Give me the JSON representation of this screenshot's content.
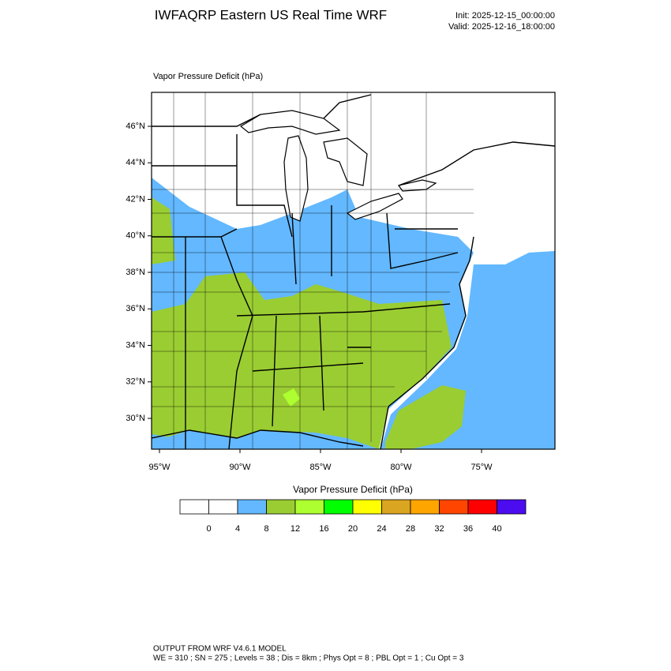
{
  "header": {
    "title": "IWFAQRP Eastern US Real Time WRF",
    "init": "Init: 2025-12-15_00:00:00",
    "valid": "Valid: 2025-12-16_18:00:00"
  },
  "map": {
    "subtitle": "Vapor Pressure Deficit   (hPa)",
    "lat_labels": [
      "46°N",
      "44°N",
      "42°N",
      "40°N",
      "38°N",
      "36°N",
      "34°N",
      "32°N",
      "30°N"
    ],
    "lon_labels": [
      "95°W",
      "90°W",
      "85°W",
      "80°W",
      "75°W"
    ]
  },
  "colorbar": {
    "title": "Vapor Pressure Deficit  (hPa)",
    "colors": [
      "#ffffff",
      "#ffffff",
      "#63b8ff",
      "#9acd32",
      "#adff2f",
      "#00ff00",
      "#ffff00",
      "#daa520",
      "#ffa500",
      "#ff4500",
      "#ff0000",
      "#4b0cf0"
    ],
    "ticks": [
      0,
      4,
      8,
      12,
      16,
      20,
      24,
      28,
      32,
      36,
      40
    ]
  },
  "footer": {
    "line1": "OUTPUT FROM WRF V4.6.1 MODEL",
    "line2": "WE = 310 ; SN = 275 ; Levels = 38 ; Dis = 8km ; Phys Opt = 8 ; PBL Opt = 1 ; Cu Opt = 3"
  }
}
